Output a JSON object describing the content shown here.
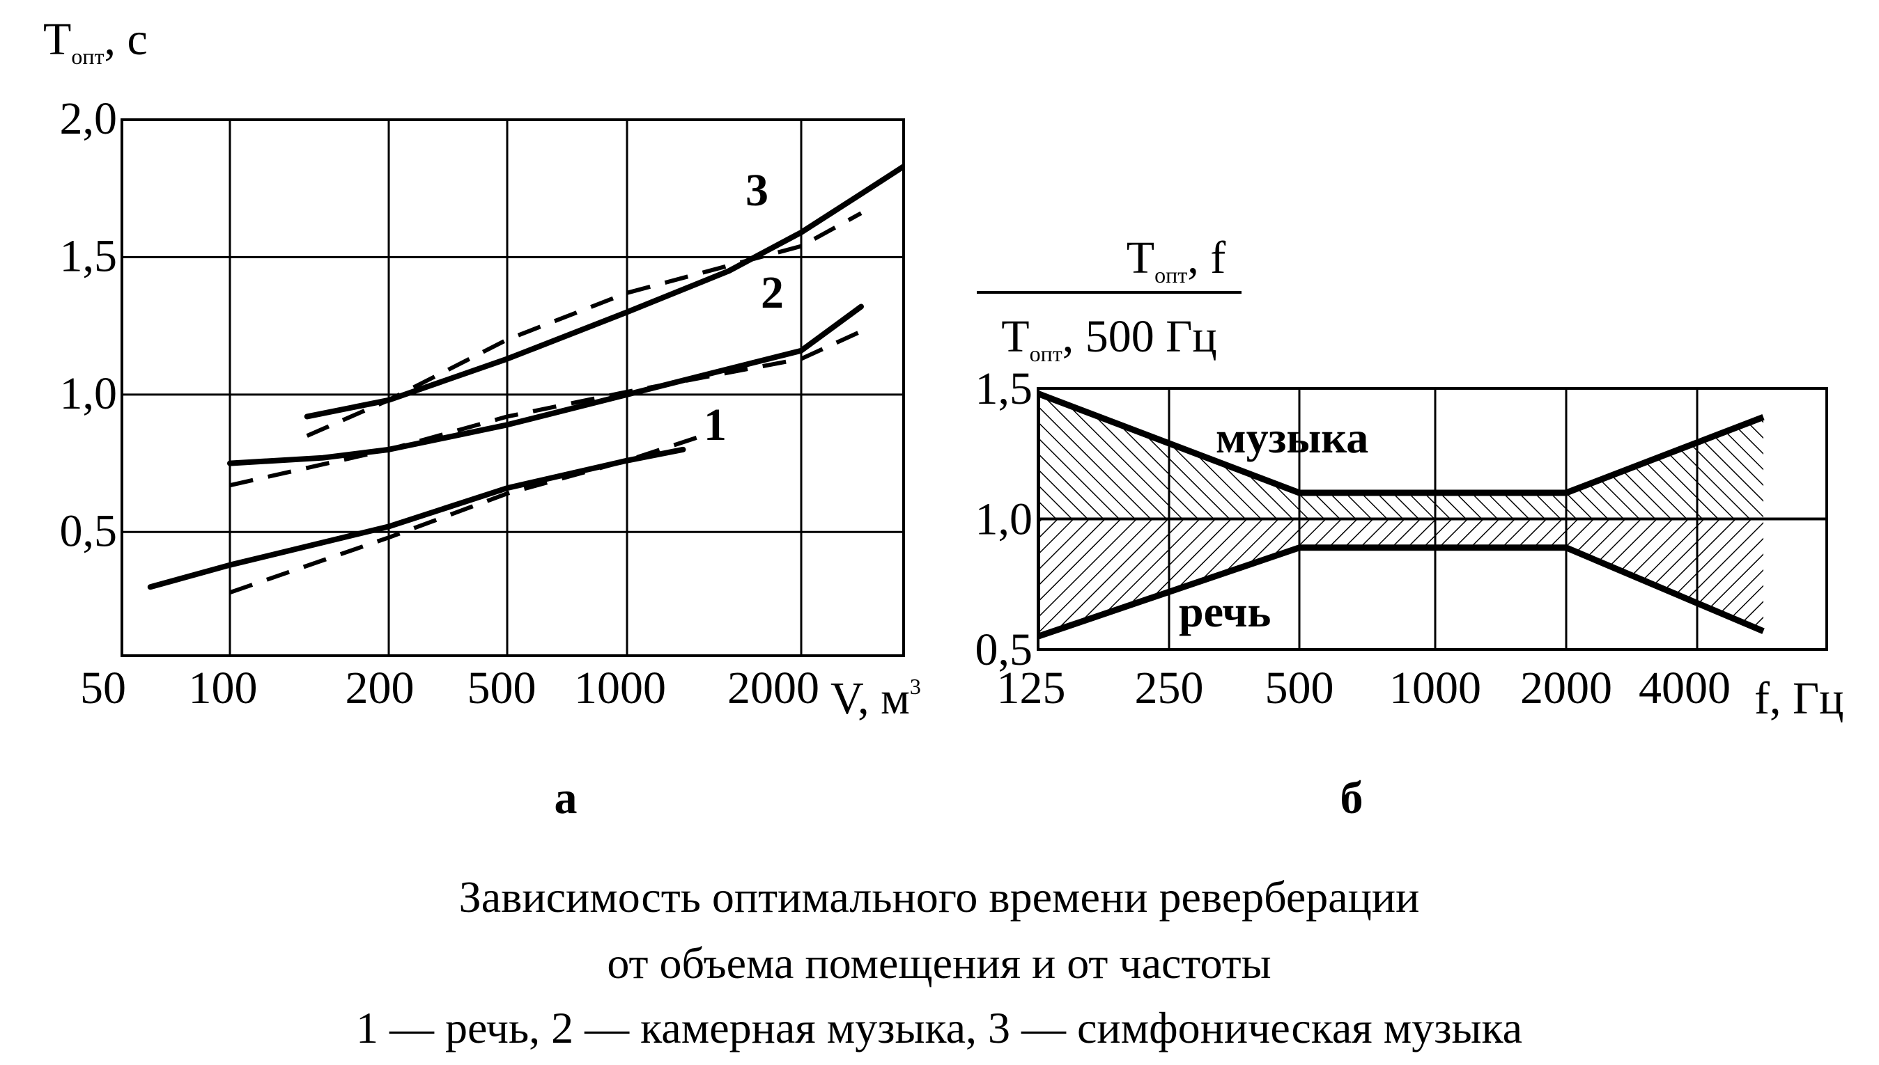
{
  "chart_data": [
    {
      "panel_label": "а",
      "type": "line",
      "ylabel": "T",
      "ylabel_sub": "опт",
      "ylabel_unit": ", с",
      "xlabel": "V, м",
      "xlabel_sup": "3",
      "x_ticks": [
        "50",
        "100",
        "200",
        "500",
        "1000",
        "2000"
      ],
      "y_ticks": [
        "0,5",
        "1,0",
        "1,5",
        "2,0"
      ],
      "y_tick_values": [
        0.5,
        1.0,
        1.5,
        2.0
      ],
      "ylim": [
        0.05,
        2.0
      ],
      "x_scale": "log",
      "xlim": [
        50,
        4000
      ],
      "grid": true,
      "series": [
        {
          "name": "1",
          "style": "solid",
          "x": [
            60,
            100,
            200,
            500,
            1000,
            1250
          ],
          "y": [
            0.3,
            0.38,
            0.52,
            0.66,
            0.76,
            0.8
          ]
        },
        {
          "name": "1",
          "style": "dashed",
          "x": [
            100,
            200,
            500,
            1000,
            1350
          ],
          "y": [
            0.28,
            0.48,
            0.64,
            0.76,
            0.85
          ]
        },
        {
          "name": "2",
          "style": "solid",
          "x": [
            100,
            150,
            200,
            500,
            1000,
            2000,
            3000
          ],
          "y": [
            0.75,
            0.77,
            0.8,
            0.89,
            1.0,
            1.16,
            1.32
          ]
        },
        {
          "name": "2",
          "style": "dashed",
          "x": [
            100,
            200,
            500,
            1000,
            2000,
            3000
          ],
          "y": [
            0.67,
            0.8,
            0.92,
            1.01,
            1.13,
            1.23
          ]
        },
        {
          "name": "3",
          "style": "solid",
          "x": [
            140,
            200,
            500,
            1000,
            1500,
            2000,
            3000,
            4000
          ],
          "y": [
            0.92,
            0.98,
            1.13,
            1.3,
            1.45,
            1.59,
            1.73,
            1.83
          ]
        },
        {
          "name": "3",
          "style": "dashed",
          "x": [
            140,
            200,
            500,
            1000,
            2000,
            3000
          ],
          "y": [
            0.85,
            0.98,
            1.2,
            1.37,
            1.54,
            1.66
          ]
        }
      ]
    },
    {
      "panel_label": "б",
      "type": "area",
      "ylabel_num": "T",
      "ylabel_num_sub": "опт",
      "ylabel_num_tail": ", f",
      "ylabel_den": "T",
      "ylabel_den_sub": "опт",
      "ylabel_den_tail": ", 500 Гц",
      "xlabel": "f, Гц",
      "x_ticks": [
        "125",
        "250",
        "500",
        "1000",
        "2000",
        "4000"
      ],
      "x_scale": "log",
      "y_ticks": [
        "0,5",
        "1,0",
        "1,5"
      ],
      "y_tick_values": [
        0.5,
        1.0,
        1.5
      ],
      "ylim": [
        0.5,
        1.5
      ],
      "grid": true,
      "series": [
        {
          "name": "музыка",
          "x": [
            125,
            500,
            2000,
            5700
          ],
          "y": [
            1.48,
            1.1,
            1.1,
            1.39
          ]
        },
        {
          "name": "речь",
          "x": [
            125,
            500,
            2000,
            5700
          ],
          "y": [
            0.55,
            0.89,
            0.89,
            0.57
          ]
        }
      ]
    }
  ],
  "caption": {
    "line1": "Зависимость оптимального времени реверберации",
    "line2": "от объема помещения и от частоты",
    "line3": "1 — речь, 2 — камерная музыка, 3 — симфоническая музыка"
  }
}
